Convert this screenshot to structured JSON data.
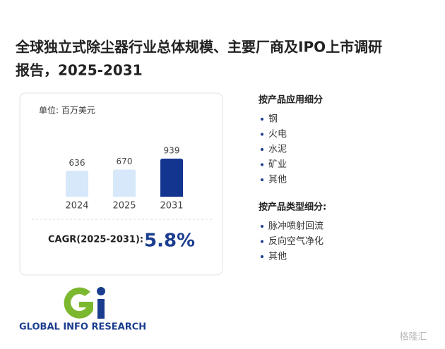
{
  "title_lines": [
    "全球独立式除尘器行业总体规模、主要厂商及IPO上市调研",
    "报告，2025-2031"
  ],
  "chart_data": {
    "type": "bar",
    "unit": "单位: 百万美元",
    "categories": [
      "2024",
      "2025",
      "2031"
    ],
    "values": [
      636,
      670,
      939
    ],
    "colors": [
      "#d6e8fa",
      "#d6e8fa",
      "#13348f"
    ]
  },
  "cagr": {
    "label": "CAGR(2025-2031):",
    "value": "5.8%"
  },
  "segments": [
    {
      "heading": "按产品应用细分",
      "items": [
        "钢",
        "火电",
        "水泥",
        "矿业",
        "其他"
      ]
    },
    {
      "heading": "按产品类型细分:",
      "items": [
        "脉冲喷射回流",
        "反向空气净化",
        "其他"
      ]
    }
  ],
  "logo_text": "GLOBAL INFO RESEARCH",
  "watermark": "格隆汇"
}
